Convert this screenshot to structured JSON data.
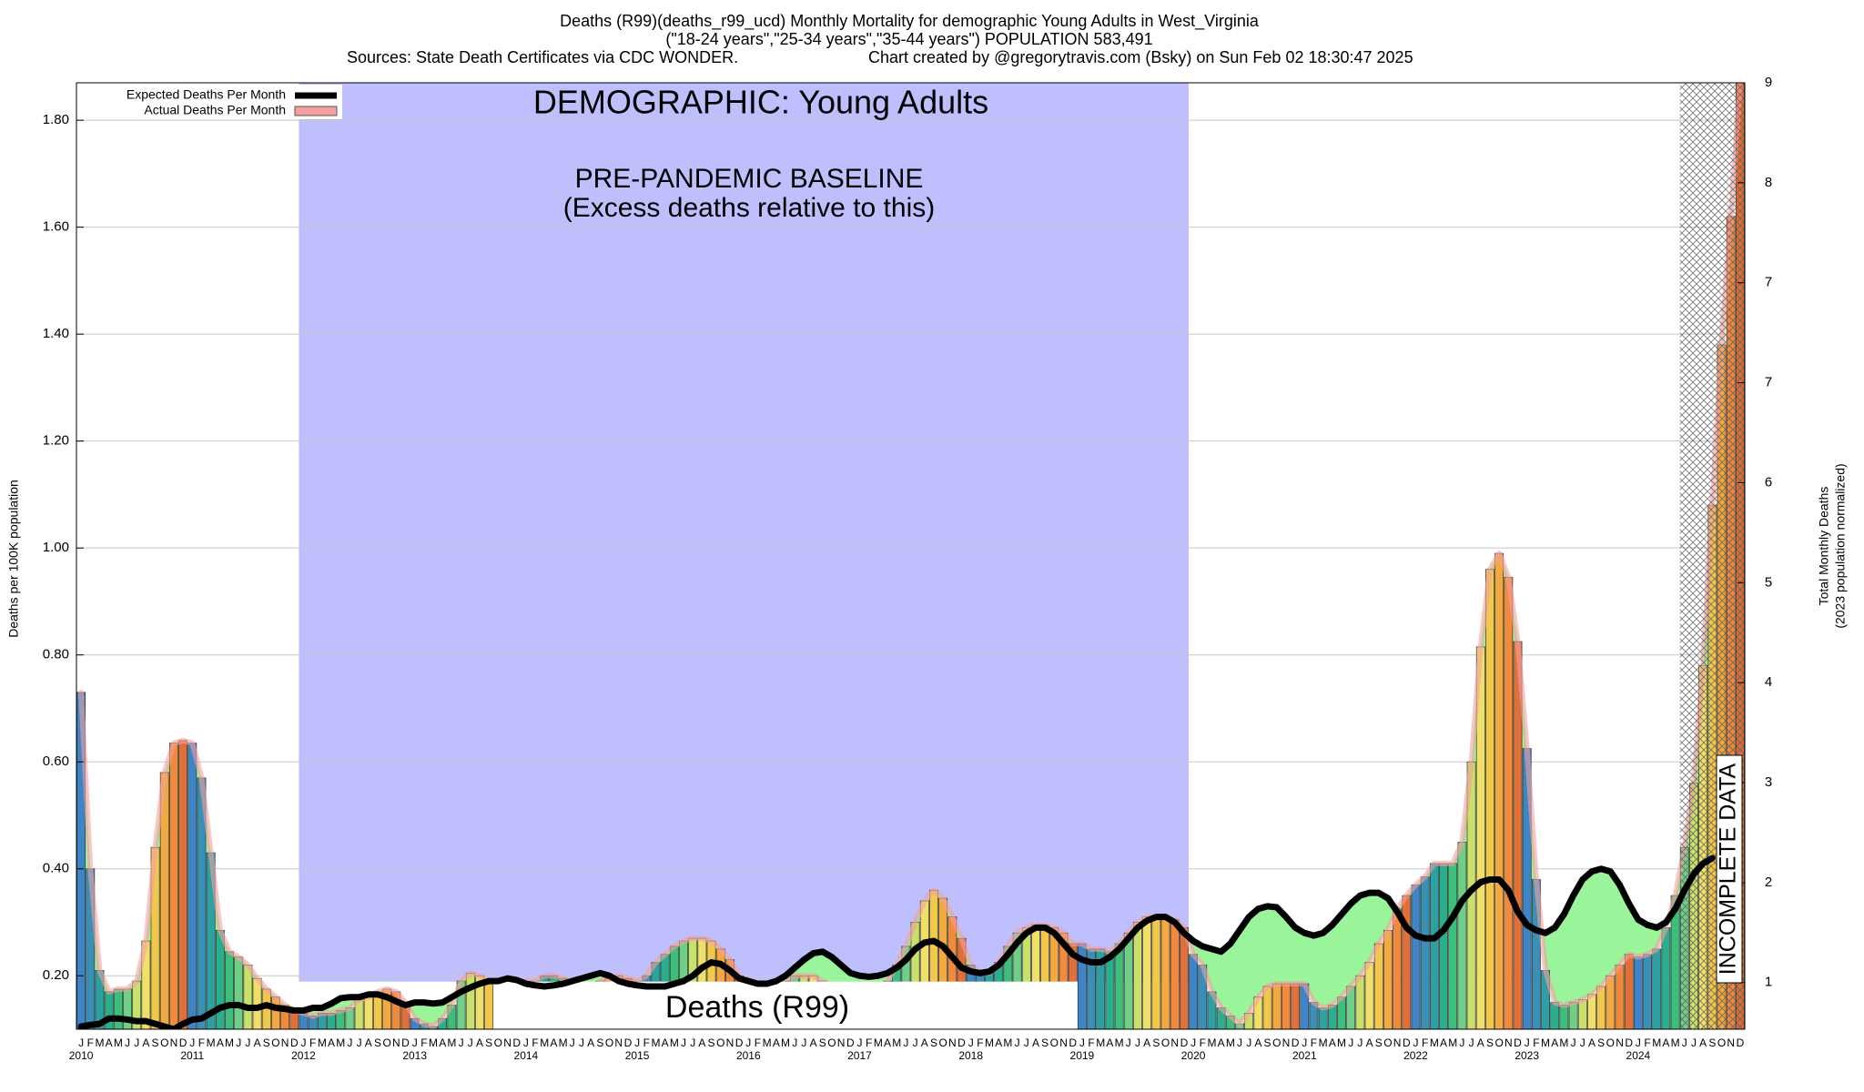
{
  "chart_data": {
    "type": "bar",
    "title": "Deaths (R99)(deaths_r99_ucd) Monthly Mortality for demographic Young Adults in West_Virginia",
    "subtitle": "(\"18-24 years\",\"25-34 years\",\"35-44 years\") POPULATION 583,491",
    "source": "Sources: State Death Certificates via CDC WONDER.",
    "credit": "Chart created by @gregorytravis.com (Bsky) on Sun Feb 02 18:30:47 2025",
    "annotations": {
      "demographic": "DEMOGRAPHIC: Young Adults",
      "baseline": "PRE-PANDEMIC BASELINE",
      "baseline_note": "(Excess deaths relative to this)",
      "cause": "Deaths (R99)",
      "incomplete": "INCOMPLETE DATA"
    },
    "ylabel": "Deaths per 100K population",
    "y2label": "Total Monthly Deaths",
    "y2label_note": "(2023 population normalized)",
    "categories": [
      "J",
      "F",
      "M",
      "A",
      "M",
      "J",
      "J",
      "A",
      "S",
      "O",
      "N",
      "D",
      "J",
      "F",
      "M",
      "A",
      "M",
      "J",
      "J",
      "A",
      "S",
      "O",
      "N",
      "D",
      "J",
      "F",
      "M",
      "A",
      "M",
      "J",
      "J",
      "A",
      "S",
      "O",
      "N",
      "D",
      "J",
      "F",
      "M",
      "A",
      "M",
      "J",
      "J",
      "A",
      "S",
      "O",
      "N",
      "D",
      "J",
      "F",
      "M",
      "A",
      "M",
      "J",
      "J",
      "A",
      "S",
      "O",
      "N",
      "D",
      "J",
      "F",
      "M",
      "A",
      "M",
      "J",
      "J",
      "A",
      "S",
      "O",
      "N",
      "D",
      "J",
      "F",
      "M",
      "A",
      "M",
      "J",
      "J",
      "A",
      "S",
      "O",
      "N",
      "D",
      "J",
      "F",
      "M",
      "A",
      "M",
      "J",
      "J",
      "A",
      "S",
      "O",
      "N",
      "D",
      "J",
      "F",
      "M",
      "A",
      "M",
      "J",
      "J",
      "A",
      "S",
      "O",
      "N",
      "D",
      "J",
      "F",
      "M",
      "A",
      "M",
      "J",
      "J",
      "A",
      "S",
      "O",
      "N",
      "D",
      "J",
      "F",
      "M",
      "A",
      "M",
      "J",
      "J",
      "A",
      "S",
      "O",
      "N",
      "D",
      "J",
      "F",
      "M",
      "A",
      "M",
      "J",
      "J",
      "A",
      "S",
      "O",
      "N",
      "D",
      "J",
      "F",
      "M",
      "A",
      "M",
      "J",
      "J",
      "A",
      "S",
      "O",
      "N",
      "D",
      "J",
      "F",
      "M",
      "A",
      "M",
      "J",
      "J",
      "A",
      "S",
      "O",
      "N",
      "D",
      "J",
      "F",
      "M",
      "A",
      "M",
      "J",
      "J",
      "A",
      "S",
      "O",
      "N",
      "D"
    ],
    "years": [
      "2010",
      "2011",
      "2012",
      "2013",
      "2014",
      "2015",
      "2016",
      "2017",
      "2018",
      "2019",
      "2020",
      "2021",
      "2022",
      "2023",
      "2024"
    ],
    "series": [
      {
        "name": "Expected Deaths Per Month",
        "color": "#000000",
        "type": "line",
        "fill": "#9af59a",
        "values": [
          0.105,
          0.108,
          0.11,
          0.12,
          0.12,
          0.118,
          0.115,
          0.115,
          0.11,
          0.105,
          0.1,
          0.11,
          0.118,
          0.12,
          0.13,
          0.14,
          0.145,
          0.145,
          0.14,
          0.14,
          0.145,
          0.14,
          0.138,
          0.135,
          0.135,
          0.14,
          0.14,
          0.148,
          0.158,
          0.16,
          0.16,
          0.165,
          0.165,
          0.16,
          0.152,
          0.145,
          0.15,
          0.15,
          0.148,
          0.15,
          0.16,
          0.17,
          0.178,
          0.185,
          0.19,
          0.19,
          0.195,
          0.192,
          0.185,
          0.182,
          0.18,
          0.182,
          0.185,
          0.19,
          0.195,
          0.2,
          0.205,
          0.2,
          0.19,
          0.185,
          0.182,
          0.18,
          0.18,
          0.18,
          0.185,
          0.19,
          0.2,
          0.215,
          0.225,
          0.222,
          0.21,
          0.195,
          0.19,
          0.185,
          0.185,
          0.19,
          0.2,
          0.215,
          0.23,
          0.242,
          0.245,
          0.235,
          0.22,
          0.205,
          0.2,
          0.198,
          0.2,
          0.205,
          0.215,
          0.23,
          0.25,
          0.262,
          0.265,
          0.255,
          0.235,
          0.215,
          0.208,
          0.205,
          0.208,
          0.22,
          0.24,
          0.262,
          0.28,
          0.29,
          0.29,
          0.28,
          0.26,
          0.24,
          0.23,
          0.225,
          0.225,
          0.235,
          0.25,
          0.27,
          0.29,
          0.303,
          0.31,
          0.31,
          0.3,
          0.28,
          0.265,
          0.255,
          0.25,
          0.245,
          0.26,
          0.285,
          0.31,
          0.325,
          0.33,
          0.328,
          0.31,
          0.29,
          0.28,
          0.275,
          0.28,
          0.295,
          0.315,
          0.335,
          0.35,
          0.355,
          0.355,
          0.345,
          0.32,
          0.29,
          0.275,
          0.27,
          0.27,
          0.285,
          0.31,
          0.34,
          0.36,
          0.375,
          0.38,
          0.38,
          0.36,
          0.32,
          0.295,
          0.285,
          0.28,
          0.29,
          0.315,
          0.35,
          0.38,
          0.395,
          0.4,
          0.395,
          0.37,
          0.335,
          0.305,
          0.295,
          0.29,
          0.3,
          0.325,
          0.36,
          0.39,
          0.41,
          0.42,
          null,
          null,
          null
        ]
      },
      {
        "name": "Actual Deaths Per Month",
        "color": "#f4a0a0",
        "type": "bar",
        "month_colors": [
          "#3d85c6",
          "#3a8fb7",
          "#2e9fa3",
          "#2bae8e",
          "#3bbf7a",
          "#6fcf86",
          "#c9e06a",
          "#f0e06a",
          "#f2c84b",
          "#f4a840",
          "#f28a3c",
          "#e0703a"
        ],
        "values": [
          0.73,
          0.4,
          0.21,
          0.17,
          0.175,
          0.175,
          0.19,
          0.265,
          0.44,
          0.58,
          0.635,
          0.64,
          0.635,
          0.57,
          0.43,
          0.285,
          0.245,
          0.235,
          0.22,
          0.195,
          0.175,
          0.16,
          0.145,
          0.135,
          0.13,
          0.125,
          0.13,
          0.13,
          0.135,
          0.14,
          0.155,
          0.16,
          0.17,
          0.175,
          0.17,
          0.15,
          0.12,
          0.11,
          0.105,
          0.12,
          0.145,
          0.19,
          0.205,
          0.2,
          0.19,
          0.185,
          0.19,
          0.19,
          0.19,
          0.19,
          0.2,
          0.2,
          0.195,
          0.19,
          0.185,
          0.18,
          0.19,
          0.195,
          0.2,
          0.195,
          0.19,
          0.2,
          0.225,
          0.24,
          0.255,
          0.265,
          0.27,
          0.27,
          0.265,
          0.25,
          0.23,
          0.2,
          0.18,
          0.17,
          0.17,
          0.18,
          0.19,
          0.2,
          0.2,
          0.2,
          0.19,
          0.18,
          0.17,
          0.17,
          0.17,
          0.17,
          0.175,
          0.19,
          0.22,
          0.255,
          0.3,
          0.34,
          0.36,
          0.345,
          0.31,
          0.27,
          0.22,
          0.205,
          0.205,
          0.225,
          0.255,
          0.28,
          0.29,
          0.295,
          0.295,
          0.29,
          0.28,
          0.26,
          0.26,
          0.25,
          0.25,
          0.245,
          0.26,
          0.28,
          0.3,
          0.31,
          0.31,
          0.31,
          0.305,
          0.29,
          0.24,
          0.22,
          0.17,
          0.14,
          0.125,
          0.11,
          0.13,
          0.16,
          0.18,
          0.185,
          0.185,
          0.185,
          0.185,
          0.15,
          0.14,
          0.145,
          0.16,
          0.18,
          0.2,
          0.225,
          0.26,
          0.285,
          0.325,
          0.35,
          0.37,
          0.385,
          0.41,
          0.41,
          0.41,
          0.45,
          0.6,
          0.815,
          0.96,
          0.99,
          0.945,
          0.825,
          0.625,
          0.38,
          0.21,
          0.15,
          0.145,
          0.15,
          0.155,
          0.165,
          0.18,
          0.2,
          0.22,
          0.24,
          0.235,
          0.24,
          0.25,
          0.29,
          0.35,
          0.44,
          0.56,
          0.78,
          1.08,
          1.38,
          1.62,
          1.87
        ]
      }
    ],
    "ylim": [
      0.1,
      1.87
    ],
    "yticks": [
      {
        "value": 0.2,
        "label": "0.20"
      },
      {
        "value": 0.4,
        "label": "0.40"
      },
      {
        "value": 0.6,
        "label": "0.60"
      },
      {
        "value": 0.8,
        "label": "0.80"
      },
      {
        "value": 1.0,
        "label": "1.00"
      },
      {
        "value": 1.2,
        "label": "1.20"
      },
      {
        "value": 1.4,
        "label": "1.40"
      },
      {
        "value": 1.6,
        "label": "1.60"
      },
      {
        "value": 1.8,
        "label": "1.80"
      }
    ],
    "y2lim": [
      0.68,
      9.2
    ],
    "y2ticks": [
      {
        "value": 1.1,
        "label": "1"
      },
      {
        "value": 2.0,
        "label": "2"
      },
      {
        "value": 2.9,
        "label": "3"
      },
      {
        "value": 3.8,
        "label": "4"
      },
      {
        "value": 4.7,
        "label": "5"
      },
      {
        "value": 5.6,
        "label": "6"
      },
      {
        "value": 6.5,
        "label": "7"
      },
      {
        "value": 7.4,
        "label": "7"
      },
      {
        "value": 8.3,
        "label": "8"
      },
      {
        "value": 9.2,
        "label": "9"
      }
    ],
    "grid": true,
    "legend": "top-left"
  }
}
